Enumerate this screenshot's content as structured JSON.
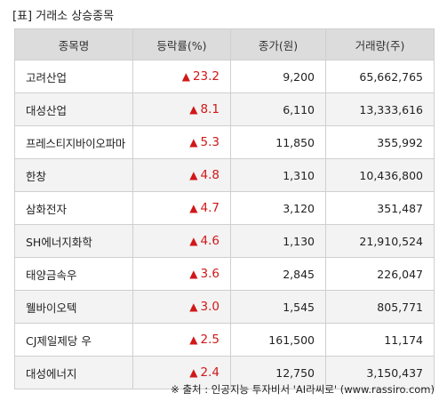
{
  "title": "[표] 거래소 상승종목",
  "columns": {
    "name": "종목명",
    "rate": "등락률(%)",
    "price": "종가(원)",
    "volume": "거래량(주)"
  },
  "up_symbol": "▲",
  "rows": [
    {
      "name": "고려산업",
      "rate": "23.2",
      "price": "9,200",
      "volume": "65,662,765"
    },
    {
      "name": "대성산업",
      "rate": "8.1",
      "price": "6,110",
      "volume": "13,333,616"
    },
    {
      "name": "프레스티지바이오파마",
      "rate": "5.3",
      "price": "11,850",
      "volume": "355,992"
    },
    {
      "name": "한창",
      "rate": "4.8",
      "price": "1,310",
      "volume": "10,436,800"
    },
    {
      "name": "삼화전자",
      "rate": "4.7",
      "price": "3,120",
      "volume": "351,487"
    },
    {
      "name": "SH에너지화학",
      "rate": "4.6",
      "price": "1,130",
      "volume": "21,910,524"
    },
    {
      "name": "태양금속우",
      "rate": "3.6",
      "price": "2,845",
      "volume": "226,047"
    },
    {
      "name": "웰바이오텍",
      "rate": "3.0",
      "price": "1,545",
      "volume": "805,771"
    },
    {
      "name": "CJ제일제당 우",
      "rate": "2.5",
      "price": "161,500",
      "volume": "11,174"
    },
    {
      "name": "대성에너지",
      "rate": "2.4",
      "price": "12,750",
      "volume": "3,150,437"
    }
  ],
  "source": "※ 출처 : 인공지능 투자비서 'AI라씨로' (www.rassiro.com)",
  "colors": {
    "up": "#d01818",
    "header_bg": "#dcdcdc",
    "row_alt_bg": "#f3f3f3"
  }
}
